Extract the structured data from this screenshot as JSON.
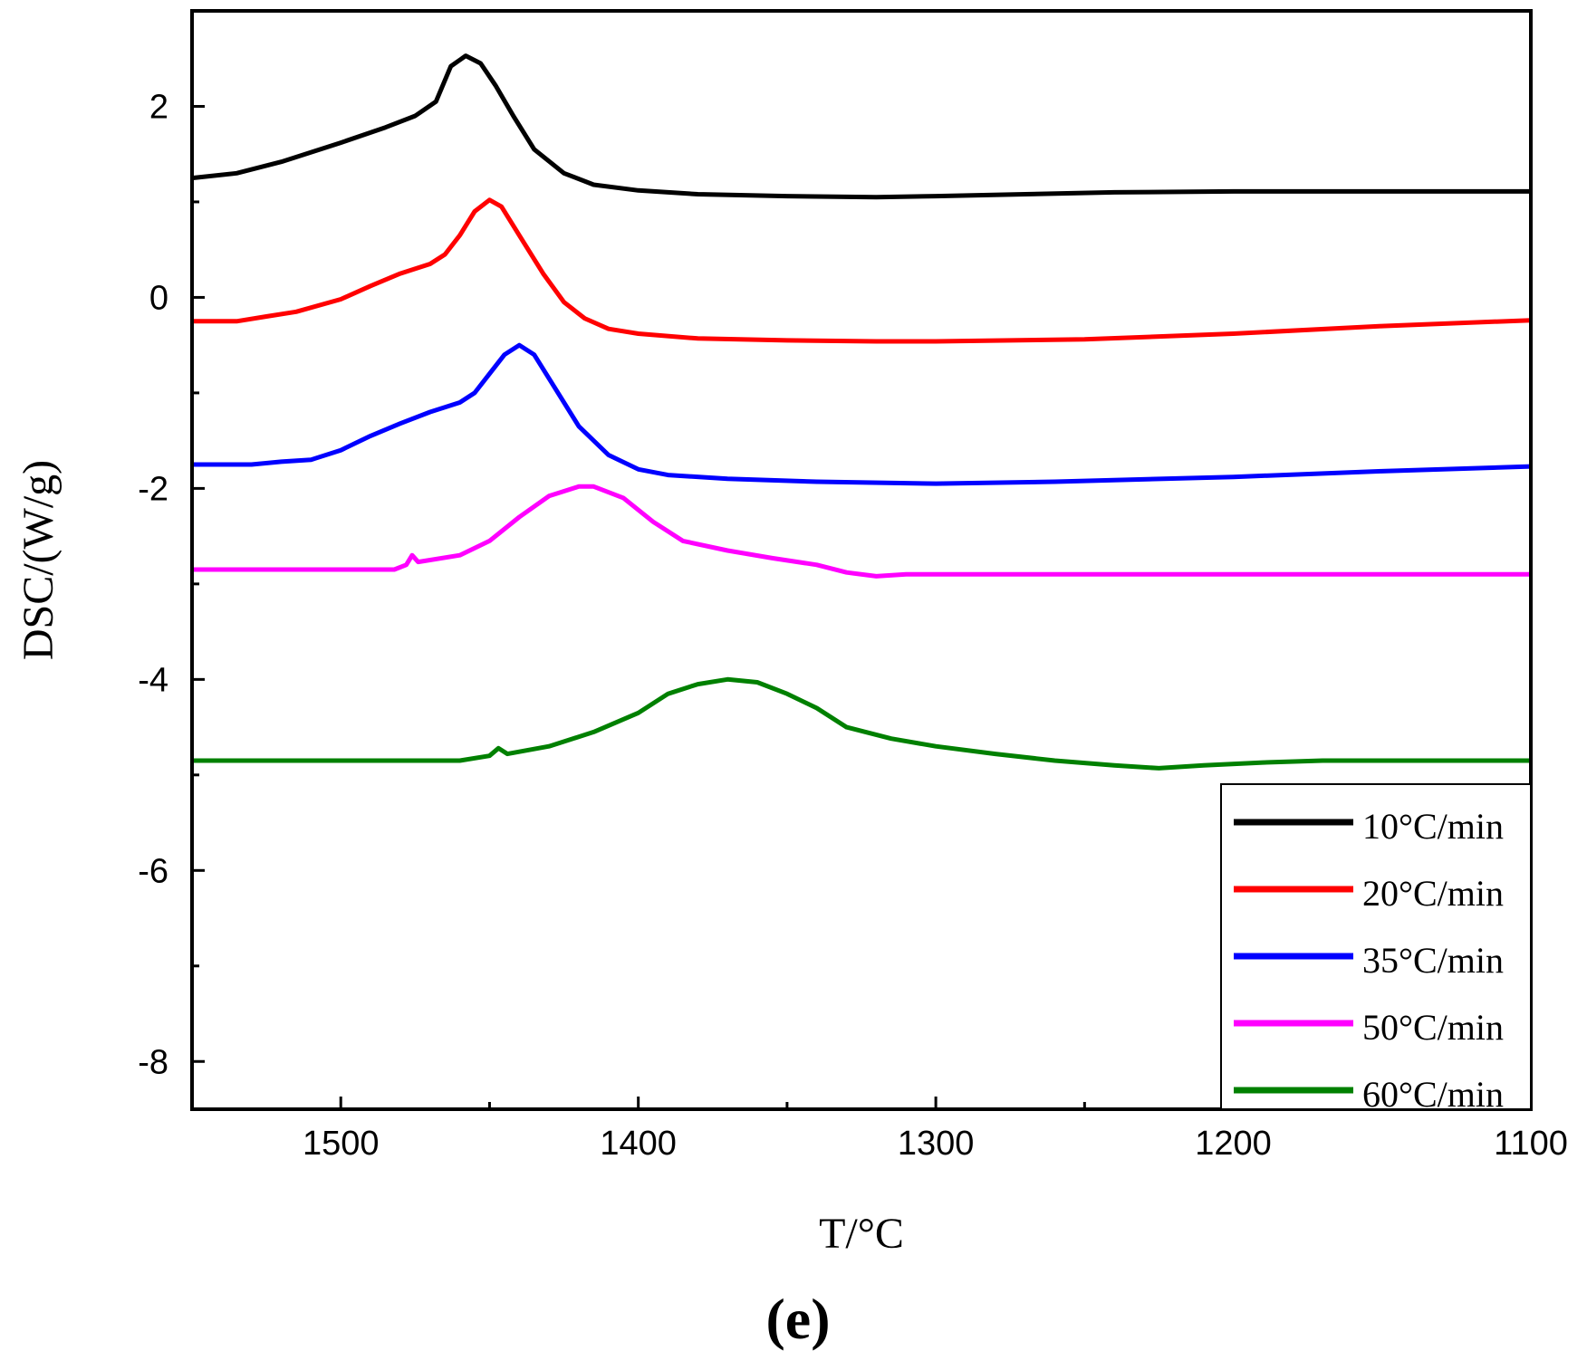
{
  "chart_data": {
    "type": "line",
    "title": "",
    "xlabel": "T/°C",
    "ylabel": "DSC/(W/g)",
    "panel_label": "(e)",
    "xlim": [
      1550,
      1100
    ],
    "ylim": [
      -8.5,
      3
    ],
    "x_ticks": [
      1500,
      1400,
      1300,
      1200,
      1100
    ],
    "x_tick_labels": [
      "1500",
      "1400",
      "1300",
      "1200",
      "1100"
    ],
    "y_ticks": [
      2,
      0,
      -2,
      -4,
      -6,
      -8
    ],
    "y_tick_labels": [
      "2",
      "0",
      "-2",
      "-4",
      "-6",
      "-8"
    ],
    "legend_position": "bottom-right",
    "grid": false,
    "series": [
      {
        "name": "10°C/min",
        "color": "#000000",
        "points": [
          [
            1550,
            1.25
          ],
          [
            1535,
            1.3
          ],
          [
            1520,
            1.42
          ],
          [
            1500,
            1.62
          ],
          [
            1485,
            1.78
          ],
          [
            1475,
            1.9
          ],
          [
            1468,
            2.05
          ],
          [
            1463,
            2.42
          ],
          [
            1458,
            2.53
          ],
          [
            1453,
            2.45
          ],
          [
            1448,
            2.22
          ],
          [
            1442,
            1.9
          ],
          [
            1435,
            1.55
          ],
          [
            1425,
            1.3
          ],
          [
            1415,
            1.18
          ],
          [
            1400,
            1.12
          ],
          [
            1380,
            1.08
          ],
          [
            1350,
            1.06
          ],
          [
            1320,
            1.05
          ],
          [
            1300,
            1.06
          ],
          [
            1270,
            1.08
          ],
          [
            1240,
            1.1
          ],
          [
            1200,
            1.11
          ],
          [
            1150,
            1.11
          ],
          [
            1100,
            1.11
          ]
        ]
      },
      {
        "name": "20°C/min",
        "color": "#ff0000",
        "points": [
          [
            1550,
            -0.25
          ],
          [
            1535,
            -0.25
          ],
          [
            1525,
            -0.2
          ],
          [
            1515,
            -0.15
          ],
          [
            1500,
            -0.02
          ],
          [
            1490,
            0.12
          ],
          [
            1480,
            0.25
          ],
          [
            1470,
            0.35
          ],
          [
            1465,
            0.45
          ],
          [
            1460,
            0.65
          ],
          [
            1455,
            0.9
          ],
          [
            1450,
            1.02
          ],
          [
            1446,
            0.95
          ],
          [
            1440,
            0.65
          ],
          [
            1432,
            0.25
          ],
          [
            1425,
            -0.05
          ],
          [
            1418,
            -0.22
          ],
          [
            1410,
            -0.33
          ],
          [
            1400,
            -0.38
          ],
          [
            1380,
            -0.43
          ],
          [
            1350,
            -0.45
          ],
          [
            1320,
            -0.46
          ],
          [
            1300,
            -0.46
          ],
          [
            1250,
            -0.44
          ],
          [
            1200,
            -0.38
          ],
          [
            1150,
            -0.3
          ],
          [
            1100,
            -0.24
          ]
        ]
      },
      {
        "name": "35°C/min",
        "color": "#0000ff",
        "points": [
          [
            1550,
            -1.75
          ],
          [
            1530,
            -1.75
          ],
          [
            1520,
            -1.72
          ],
          [
            1510,
            -1.7
          ],
          [
            1500,
            -1.6
          ],
          [
            1490,
            -1.45
          ],
          [
            1480,
            -1.32
          ],
          [
            1470,
            -1.2
          ],
          [
            1460,
            -1.1
          ],
          [
            1455,
            -1.0
          ],
          [
            1450,
            -0.8
          ],
          [
            1445,
            -0.6
          ],
          [
            1440,
            -0.5
          ],
          [
            1435,
            -0.6
          ],
          [
            1428,
            -0.95
          ],
          [
            1420,
            -1.35
          ],
          [
            1410,
            -1.65
          ],
          [
            1400,
            -1.8
          ],
          [
            1390,
            -1.86
          ],
          [
            1370,
            -1.9
          ],
          [
            1340,
            -1.93
          ],
          [
            1300,
            -1.95
          ],
          [
            1260,
            -1.93
          ],
          [
            1200,
            -1.88
          ],
          [
            1150,
            -1.82
          ],
          [
            1100,
            -1.77
          ]
        ]
      },
      {
        "name": "50°C/min",
        "color": "#ff00ff",
        "points": [
          [
            1550,
            -2.85
          ],
          [
            1500,
            -2.85
          ],
          [
            1482,
            -2.85
          ],
          [
            1478,
            -2.8
          ],
          [
            1476,
            -2.7
          ],
          [
            1474,
            -2.77
          ],
          [
            1460,
            -2.7
          ],
          [
            1450,
            -2.55
          ],
          [
            1440,
            -2.3
          ],
          [
            1430,
            -2.08
          ],
          [
            1420,
            -1.98
          ],
          [
            1415,
            -1.98
          ],
          [
            1405,
            -2.1
          ],
          [
            1395,
            -2.35
          ],
          [
            1385,
            -2.55
          ],
          [
            1370,
            -2.65
          ],
          [
            1355,
            -2.73
          ],
          [
            1340,
            -2.8
          ],
          [
            1330,
            -2.88
          ],
          [
            1320,
            -2.92
          ],
          [
            1310,
            -2.9
          ],
          [
            1200,
            -2.9
          ],
          [
            1100,
            -2.9
          ]
        ]
      },
      {
        "name": "60°C/min",
        "color": "#008000",
        "points": [
          [
            1550,
            -4.85
          ],
          [
            1460,
            -4.85
          ],
          [
            1450,
            -4.8
          ],
          [
            1447,
            -4.72
          ],
          [
            1444,
            -4.78
          ],
          [
            1430,
            -4.7
          ],
          [
            1415,
            -4.55
          ],
          [
            1400,
            -4.35
          ],
          [
            1390,
            -4.15
          ],
          [
            1380,
            -4.05
          ],
          [
            1370,
            -4.0
          ],
          [
            1360,
            -4.03
          ],
          [
            1350,
            -4.15
          ],
          [
            1340,
            -4.3
          ],
          [
            1330,
            -4.5
          ],
          [
            1315,
            -4.62
          ],
          [
            1300,
            -4.7
          ],
          [
            1280,
            -4.78
          ],
          [
            1260,
            -4.85
          ],
          [
            1240,
            -4.9
          ],
          [
            1225,
            -4.93
          ],
          [
            1210,
            -4.9
          ],
          [
            1190,
            -4.87
          ],
          [
            1170,
            -4.85
          ],
          [
            1100,
            -4.85
          ]
        ]
      }
    ]
  }
}
